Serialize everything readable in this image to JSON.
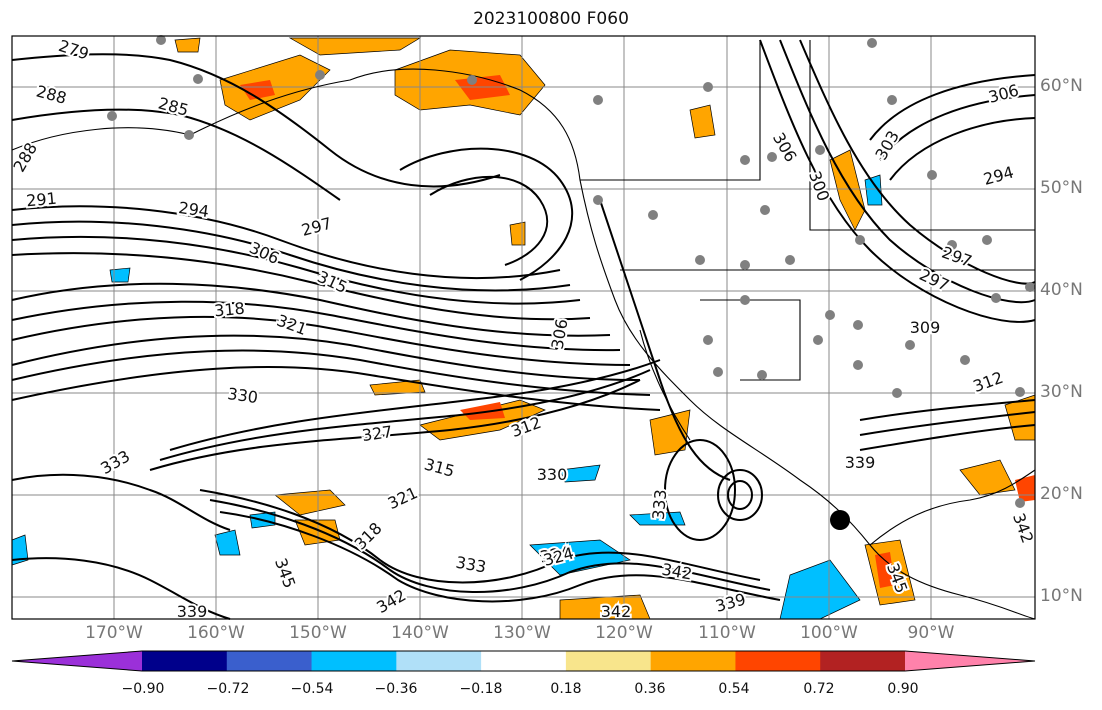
{
  "title": "2023100800 F060",
  "lat_labels": [
    "60°N",
    "50°N",
    "40°N",
    "30°N",
    "20°N",
    "10°N"
  ],
  "lon_labels": [
    "170°W",
    "160°W",
    "150°W",
    "140°W",
    "130°W",
    "120°W",
    "110°W",
    "100°W",
    "90°W"
  ],
  "colorbar": {
    "ticks": [
      "−0.90",
      "−0.72",
      "−0.54",
      "−0.36",
      "−0.18",
      "0.18",
      "0.36",
      "0.54",
      "0.72",
      "0.90"
    ],
    "colors": [
      "#9b30d9",
      "#00008b",
      "#3a5fcd",
      "#00bfff",
      "#b0e0f8",
      "#ffffff",
      "#f8e58c",
      "#ffa500",
      "#ff4500",
      "#b22222",
      "#ff82ab"
    ]
  },
  "contour_labels": [
    "279",
    "288",
    "285",
    "288",
    "291",
    "294",
    "297",
    "306",
    "315",
    "318",
    "321",
    "330",
    "327",
    "312",
    "315",
    "333",
    "321",
    "318",
    "345",
    "333",
    "324",
    "330",
    "342",
    "339",
    "342",
    "342",
    "339",
    "345",
    "306",
    "306",
    "309",
    "297",
    "294",
    "303",
    "300",
    "297",
    "306",
    "312",
    "339",
    "342",
    "324",
    "333"
  ],
  "map_colors": {
    "land_outline": "#000000",
    "contour": "#000000",
    "grid": "#888888",
    "station": "#808080"
  }
}
